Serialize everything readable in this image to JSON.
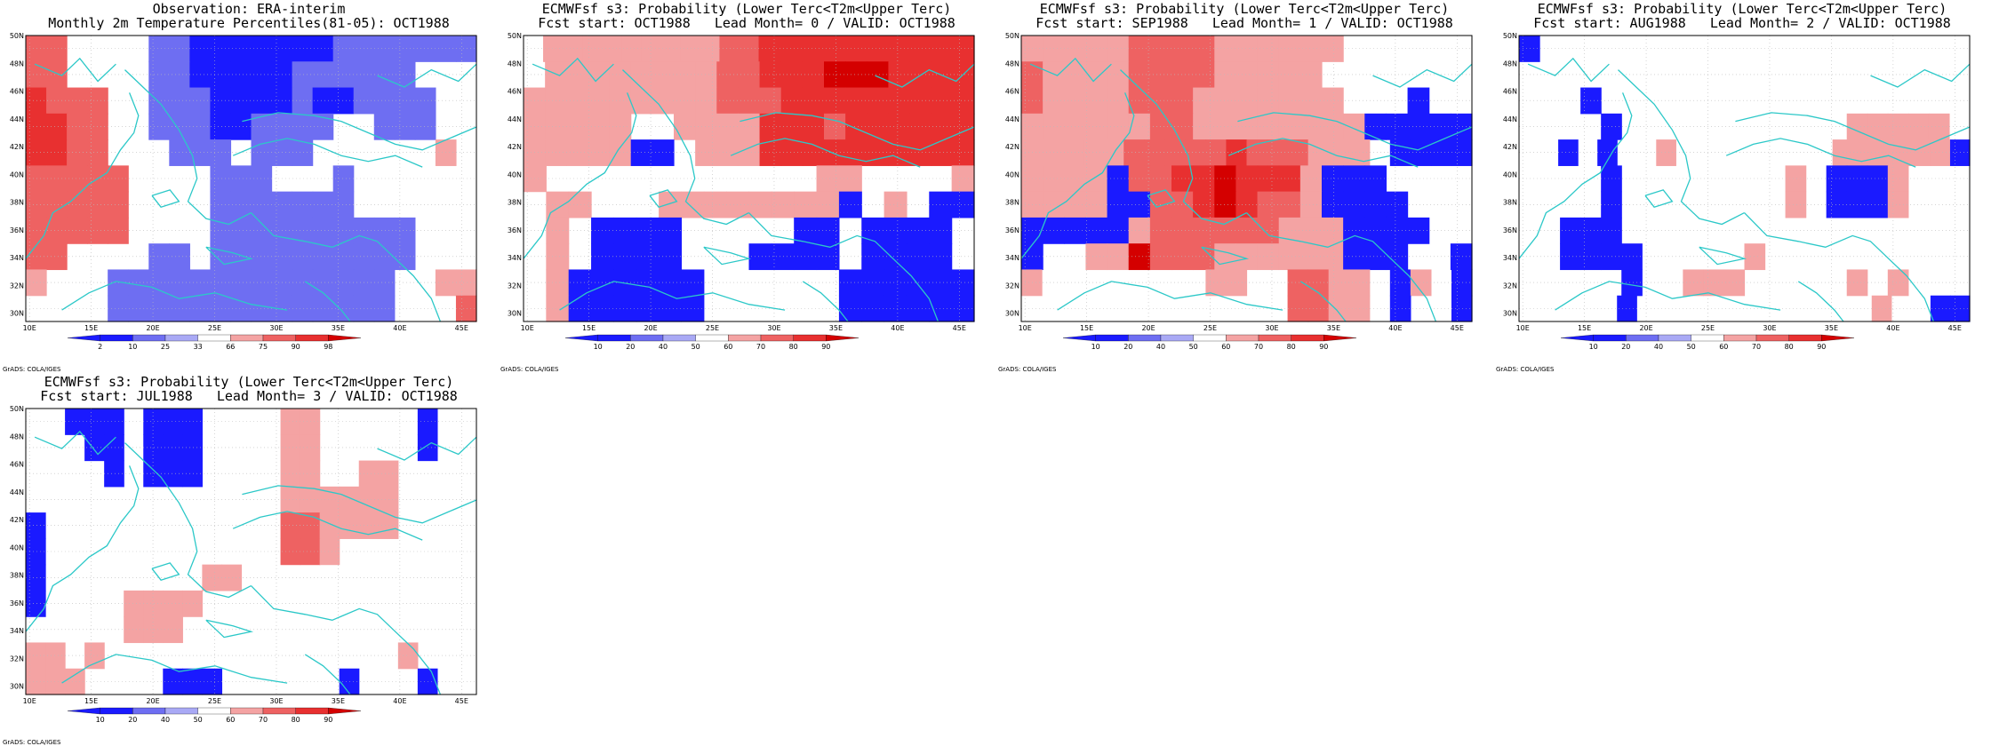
{
  "grads_label": "GrADS: COLA/IGES",
  "latitudes": [
    "50N",
    "48N",
    "46N",
    "44N",
    "42N",
    "40N",
    "38N",
    "36N",
    "34N",
    "32N",
    "30N"
  ],
  "longitudes": [
    "10E",
    "15E",
    "20E",
    "25E",
    "30E",
    "35E",
    "40E",
    "45E"
  ],
  "colors": {
    "coast": "#2cc8c8",
    "blue_strong": "#1a1aff",
    "blue_mid": "#6e6ef2",
    "blue_light": "#a9a9f5",
    "red_light": "#f4a3a3",
    "red_mid": "#ee6262",
    "red_strong": "#e83030",
    "red_deep": "#d40000"
  },
  "panels": [
    {
      "title1": "Observation: ERA-interim",
      "title2": "Monthly 2m Temperature Percentiles(81-05): OCT1988",
      "colorbar": [
        "2",
        "10",
        "25",
        "33",
        "66",
        "75",
        "90",
        "98"
      ],
      "grid": [
        "22XXXXBBAAAAAAABBBBBBB",
        "22XXXXBBACCAABBBBBBXXX",
        "3222XXBBBAACCBAABBBBXX",
        "3322XXBBBAABBBBXXBBBXX",
        "3322XXXBBBXBBBXXXXXX1X",
        "22222XXXXBBBXXXBXXXXXX",
        "22222XXXXBBBBBBBXXXXXX",
        "22222XXXXBBBBBBBBBBXXX",
        "22XXXXBBXBBBBBBBBBBXXX",
        "1XXXBBBBBBBBBBBBBBXX11",
        "XXXXBBBBBBBBBBBBBBXXX2"
      ]
    },
    {
      "title1": "ECMWFsf s3: Probability (Lower Terc<T2m<Upper Terc)",
      "title2": "Fcst start: OCT1988   Lead Month= 0 / VALID: OCT1988",
      "colorbar": [
        "10",
        "20",
        "40",
        "50",
        "60",
        "70",
        "80",
        "90"
      ],
      "grid": [
        "X1111111112233333333333",
        "X11111111223334443333",
        "111111111222333333333",
        "11111XX11113332333333",
        "11111AAX1113333333333",
        "1XXXXXXXXXXXX11XXXX1",
        "X11XXX11111111AX1XAA",
        "X1XAAAAXXXXXAAXAAAAX",
        "X1XAAAAXXXAAAAXAAAAX",
        "X1AAAAAAXXXXXXAAAAAA",
        "X1AAAAAAXXXXXXAAAAAA"
      ]
    },
    {
      "title1": "ECMWFsf s3: Probability (Lower Terc<T2m<Upper Terc)",
      "title2": "Fcst start: SEP1988   Lead Month= 1 / VALID: OCT1988",
      "colorbar": [
        "10",
        "20",
        "40",
        "50",
        "60",
        "70",
        "80",
        "90"
      ],
      "grid": [
        "111112222111111XXXXXX",
        "21111222211111XXXXXXX",
        "211112221111111XXXAXX",
        "1111112211111111AAAAA",
        "11111222223222111XAAAA",
        "1111A223343331AAAXXXX",
        "1111AA22343221AAAAXXX",
        "AAAAA1222222111AAAAXX",
        "AXX114222111111AAAXXA",
        "1XXXXXXXX11XX2211XA1XA",
        "XXXXXXXXXXXXX2211XAXXA"
      ]
    },
    {
      "title1": "ECMWFsf s3: Probability (Lower Terc<T2m<Upper Terc)",
      "title2": "Fcst start: AUG1988   Lead Month= 2 / VALID: OCT1988",
      "colorbar": [
        "10",
        "20",
        "40",
        "50",
        "60",
        "70",
        "80",
        "90"
      ],
      "grid": [
        "AXXXXXXXXXXXXXXXXXXXXX",
        "XXXXXXXXXXXXXXXXXXXXXX",
        "XXXAXXXXXXXXXXXXXXXXXX",
        "XXXXAXXXXXXXXXXX11111X",
        "XXAXAXX1XXXXXXXX111111A",
        "XXXXAXXXXXXXX1XAAA1XXX",
        "XXXXAXXXXXXXX1XAAA1XXX",
        "XXAAAXXXXXXXXXXXXXXXXX",
        "XXAAAAXXXXX1XXXXXXXXXX",
        "XXXXXAXX111XXXXX1X1XXX",
        "XXXXXAXXXXXXXXXXXX1XXAA"
      ]
    },
    {
      "title1": "ECMWFsf s3: Probability (Lower Terc<T2m<Upper Terc)",
      "title2": "Fcst start: JUL1988   Lead Month= 3 / VALID: OCT1988",
      "colorbar": [
        "10",
        "20",
        "40",
        "50",
        "60",
        "70",
        "80",
        "90"
      ],
      "grid": [
        "XXAAAXAAAXXXX11XXXXXAXX",
        "XXXAAXAAAXXXX11XXXXXAXX",
        "XXXXAXAAAXXXX11XX11XXXX",
        "XXXXXXXXXXXXX111111XXXX",
        "AXXXXXXXXXXXX221111XXXX",
        "AXXXXXXXXXXXX221XXXXXXX",
        "AXXXXXXXX11XXXXXXXXXXXX",
        "AXXXX1111XXXXXXXXXXXXXX",
        "XXXXX111XXXXXXXXXXXXXXX",
        "11X1XXXXXXXXXXXXXXX1XXX",
        "111XXXXAAAXXXXXXAXXXAXX"
      ]
    }
  ]
}
